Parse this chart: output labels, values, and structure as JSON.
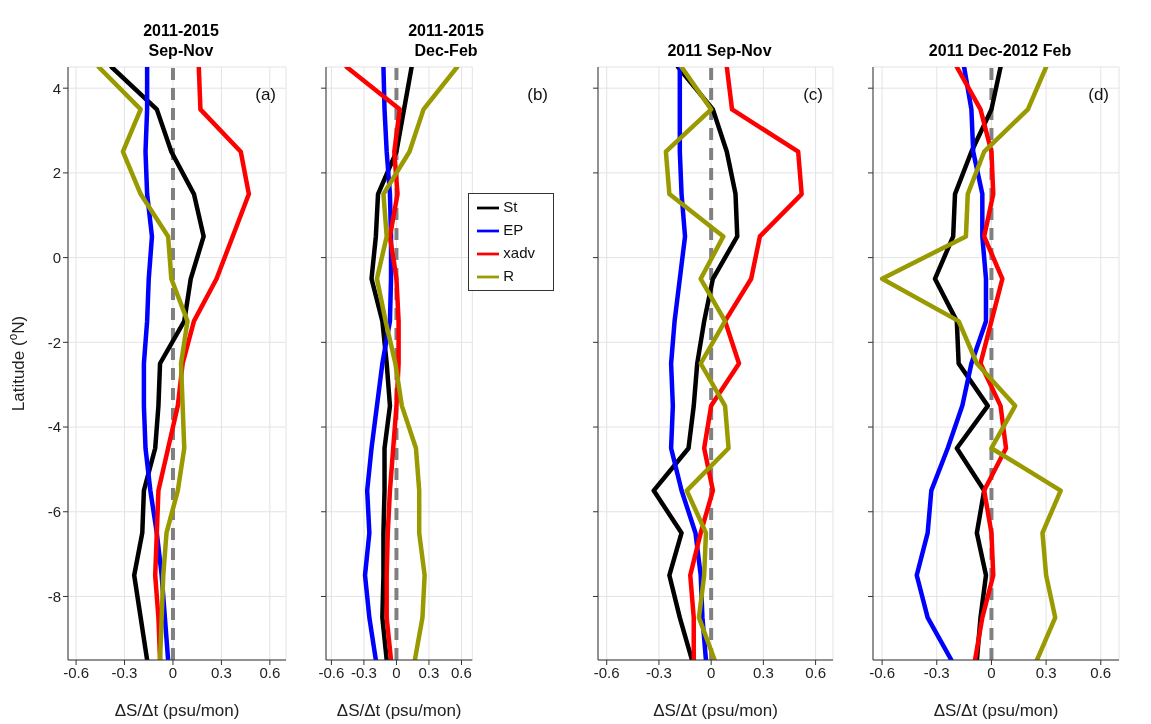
{
  "chart_data": [
    {
      "type": "line",
      "title": "2011-2015\nSep-Nov",
      "xlabel": "ΔS/Δt (psu/mon)",
      "ylabel": "Latitude ($^{o}$N)",
      "annotations": [
        "(a)"
      ],
      "xlim": [
        -0.65,
        0.7
      ],
      "xticks": [
        -0.6,
        -0.3,
        0,
        0.3,
        0.6
      ],
      "ylim": [
        -9.5,
        4.5
      ],
      "yticks": [
        -8,
        -6,
        -4,
        -2,
        0,
        2,
        4
      ],
      "grid": true,
      "legend": false,
      "marker": "none",
      "line_style": "solid",
      "ref_lines": [
        {
          "axis": "x",
          "value": 0,
          "color": "#808080",
          "line_style": "dashed"
        }
      ],
      "series": [
        {
          "color": "#000000",
          "x": [
            -0.38,
            -0.1,
            -0.01,
            0.13,
            0.19,
            0.11,
            0.07,
            -0.08,
            -0.09,
            -0.11,
            -0.18,
            -0.19,
            -0.24,
            -0.2,
            -0.16
          ],
          "values": [
            4.5,
            3.5,
            2.5,
            1.5,
            0.5,
            -0.5,
            -1.5,
            -2.5,
            -3.5,
            -4.5,
            -5.5,
            -6.5,
            -7.5,
            -8.5,
            -9.5
          ]
        },
        {
          "color": "#0000ff",
          "x": [
            -0.16,
            -0.16,
            -0.17,
            -0.16,
            -0.13,
            -0.15,
            -0.16,
            -0.18,
            -0.18,
            -0.17,
            -0.14,
            -0.1,
            -0.07,
            -0.05,
            -0.03
          ],
          "values": [
            4.5,
            3.5,
            2.5,
            1.5,
            0.5,
            -0.5,
            -1.5,
            -2.5,
            -3.5,
            -4.5,
            -5.5,
            -6.5,
            -7.5,
            -8.5,
            -9.5
          ]
        },
        {
          "color": "#ff0000",
          "x": [
            0.16,
            0.17,
            0.42,
            0.47,
            0.37,
            0.27,
            0.13,
            0.06,
            0.03,
            -0.03,
            -0.09,
            -0.1,
            -0.11,
            -0.09,
            -0.08
          ],
          "values": [
            4.5,
            3.5,
            2.5,
            1.5,
            0.5,
            -0.5,
            -1.5,
            -2.5,
            -3.5,
            -4.5,
            -5.5,
            -6.5,
            -7.5,
            -8.5,
            -9.5
          ]
        },
        {
          "color": "#999900",
          "x": [
            -0.46,
            -0.2,
            -0.31,
            -0.2,
            -0.03,
            -0.01,
            0.09,
            0.05,
            0.06,
            0.07,
            0.03,
            -0.04,
            -0.06,
            -0.07,
            -0.08
          ],
          "values": [
            4.5,
            3.5,
            2.5,
            1.5,
            0.5,
            -0.5,
            -1.5,
            -2.5,
            -3.5,
            -4.5,
            -5.5,
            -6.5,
            -7.5,
            -8.5,
            -9.5
          ]
        }
      ]
    },
    {
      "type": "line",
      "title": "2011-2015\nDec-Feb",
      "xlabel": "ΔS/Δt (psu/mon)",
      "annotations": [
        "(b)"
      ],
      "xlim": [
        -0.65,
        0.7
      ],
      "xticks": [
        -0.6,
        -0.3,
        0,
        0.3,
        0.6
      ],
      "ylim": [
        -9.5,
        4.5
      ],
      "yticks": [
        -8,
        -6,
        -4,
        -2,
        0,
        2,
        4
      ],
      "tick_labels": "x",
      "grid": true,
      "legend": "top right",
      "marker": "none",
      "line_style": "solid",
      "ref_lines": [
        {
          "axis": "x",
          "value": 0,
          "color": "#808080",
          "line_style": "dashed"
        }
      ],
      "series": [
        {
          "name": "St",
          "color": "#000000",
          "x": [
            0.14,
            0.07,
            0,
            -0.17,
            -0.19,
            -0.23,
            -0.13,
            -0.09,
            -0.06,
            -0.11,
            -0.11,
            -0.12,
            -0.12,
            -0.13,
            -0.09
          ],
          "values": [
            4.5,
            3.5,
            2.5,
            1.5,
            0.5,
            -0.5,
            -1.5,
            -2.5,
            -3.5,
            -4.5,
            -5.5,
            -6.5,
            -7.5,
            -8.5,
            -9.5
          ]
        },
        {
          "name": "EP",
          "color": "#0000ff",
          "x": [
            -0.12,
            -0.11,
            -0.09,
            -0.06,
            -0.05,
            -0.05,
            -0.06,
            -0.13,
            -0.18,
            -0.23,
            -0.27,
            -0.25,
            -0.29,
            -0.25,
            -0.19
          ],
          "values": [
            4.5,
            3.5,
            2.5,
            1.5,
            0.5,
            -0.5,
            -1.5,
            -2.5,
            -3.5,
            -4.5,
            -5.5,
            -6.5,
            -7.5,
            -8.5,
            -9.5
          ]
        },
        {
          "name": "xadv",
          "color": "#ff0000",
          "x": [
            -0.46,
            0.03,
            -0.02,
            0.01,
            -0.06,
            0,
            0.02,
            0.02,
            0,
            -0.03,
            -0.06,
            -0.08,
            -0.09,
            -0.09,
            -0.05
          ],
          "values": [
            4.5,
            3.5,
            2.5,
            1.5,
            0.5,
            -0.5,
            -1.5,
            -2.5,
            -3.5,
            -4.5,
            -5.5,
            -6.5,
            -7.5,
            -8.5,
            -9.5
          ]
        },
        {
          "name": "R",
          "color": "#999900",
          "x": [
            0.56,
            0.25,
            0.12,
            -0.12,
            -0.09,
            -0.18,
            -0.1,
            -0.01,
            0.05,
            0.18,
            0.21,
            0.21,
            0.26,
            0.24,
            0.17
          ],
          "values": [
            4.5,
            3.5,
            2.5,
            1.5,
            0.5,
            -0.5,
            -1.5,
            -2.5,
            -3.5,
            -4.5,
            -5.5,
            -6.5,
            -7.5,
            -8.5,
            -9.5
          ]
        }
      ]
    },
    {
      "type": "line",
      "title": "2011 Sep-Nov",
      "xlabel": "ΔS/Δt (psu/mon)",
      "annotations": [
        "(c)"
      ],
      "xlim": [
        -0.65,
        0.7
      ],
      "xticks": [
        -0.6,
        -0.3,
        0,
        0.3,
        0.6
      ],
      "ylim": [
        -9.5,
        4.5
      ],
      "yticks": [
        -8,
        -6,
        -4,
        -2,
        0,
        2,
        4
      ],
      "tick_labels": "x",
      "grid": true,
      "legend": false,
      "marker": "none",
      "line_style": "solid",
      "ref_lines": [
        {
          "axis": "x",
          "value": 0,
          "color": "#808080",
          "line_style": "dashed"
        }
      ],
      "series": [
        {
          "color": "#000000",
          "x": [
            -0.19,
            0.01,
            0.09,
            0.14,
            0.15,
            0.01,
            -0.04,
            -0.08,
            -0.1,
            -0.13,
            -0.33,
            -0.17,
            -0.24,
            -0.18,
            -0.11
          ],
          "values": [
            4.5,
            3.5,
            2.5,
            1.5,
            0.5,
            -0.5,
            -1.5,
            -2.5,
            -3.5,
            -4.5,
            -5.5,
            -6.5,
            -7.5,
            -8.5,
            -9.5
          ]
        },
        {
          "color": "#0000ff",
          "x": [
            -0.18,
            -0.18,
            -0.18,
            -0.17,
            -0.15,
            -0.18,
            -0.21,
            -0.23,
            -0.22,
            -0.23,
            -0.17,
            -0.09,
            -0.06,
            -0.05,
            -0.03
          ],
          "values": [
            4.5,
            3.5,
            2.5,
            1.5,
            0.5,
            -0.5,
            -1.5,
            -2.5,
            -3.5,
            -4.5,
            -5.5,
            -6.5,
            -7.5,
            -8.5,
            -9.5
          ]
        },
        {
          "color": "#ff0000",
          "x": [
            0.09,
            0.12,
            0.5,
            0.52,
            0.28,
            0.23,
            0.08,
            0.16,
            0,
            -0.04,
            0.01,
            -0.06,
            -0.12,
            -0.1,
            -0.1
          ],
          "values": [
            4.5,
            3.5,
            2.5,
            1.5,
            0.5,
            -0.5,
            -1.5,
            -2.5,
            -3.5,
            -4.5,
            -5.5,
            -6.5,
            -7.5,
            -8.5,
            -9.5
          ]
        },
        {
          "color": "#999900",
          "x": [
            -0.17,
            0,
            -0.26,
            -0.24,
            0.07,
            -0.06,
            0.08,
            -0.06,
            0.08,
            0.1,
            -0.14,
            -0.03,
            -0.04,
            -0.07,
            0.02
          ],
          "values": [
            4.5,
            3.5,
            2.5,
            1.5,
            0.5,
            -0.5,
            -1.5,
            -2.5,
            -3.5,
            -4.5,
            -5.5,
            -6.5,
            -7.5,
            -8.5,
            -9.5
          ]
        }
      ]
    },
    {
      "type": "line",
      "title": "2011 Dec-2012 Feb",
      "xlabel": "ΔS/Δt (psu/mon)",
      "annotations": [
        "(d)"
      ],
      "xlim": [
        -0.65,
        0.7
      ],
      "xticks": [
        -0.6,
        -0.3,
        0,
        0.3,
        0.6
      ],
      "ylim": [
        -9.5,
        4.5
      ],
      "yticks": [
        -8,
        -6,
        -4,
        -2,
        0,
        2,
        4
      ],
      "tick_labels": "x",
      "grid": true,
      "legend": false,
      "marker": "none",
      "line_style": "solid",
      "ref_lines": [
        {
          "axis": "x",
          "value": 0,
          "color": "#808080",
          "line_style": "dashed"
        }
      ],
      "series": [
        {
          "color": "#000000",
          "x": [
            0.05,
            0,
            -0.11,
            -0.2,
            -0.21,
            -0.31,
            -0.19,
            -0.18,
            -0.02,
            -0.19,
            -0.04,
            -0.08,
            -0.03,
            -0.06,
            -0.08
          ],
          "values": [
            4.5,
            3.5,
            2.5,
            1.5,
            0.5,
            -0.5,
            -1.5,
            -2.5,
            -3.5,
            -4.5,
            -5.5,
            -6.5,
            -7.5,
            -8.5,
            -9.5
          ]
        },
        {
          "color": "#0000ff",
          "x": [
            -0.15,
            -0.11,
            -0.1,
            -0.05,
            -0.05,
            -0.03,
            -0.03,
            -0.11,
            -0.16,
            -0.24,
            -0.33,
            -0.35,
            -0.41,
            -0.35,
            -0.22
          ],
          "values": [
            4.5,
            3.5,
            2.5,
            1.5,
            0.5,
            -0.5,
            -1.5,
            -2.5,
            -3.5,
            -4.5,
            -5.5,
            -6.5,
            -7.5,
            -8.5,
            -9.5
          ]
        },
        {
          "color": "#ff0000",
          "x": [
            -0.19,
            -0.06,
            0,
            0.01,
            -0.04,
            0.06,
            0,
            -0.06,
            0.05,
            0.08,
            -0.04,
            0,
            0.01,
            -0.05,
            -0.09
          ],
          "values": [
            4.5,
            3.5,
            2.5,
            1.5,
            0.5,
            -0.5,
            -1.5,
            -2.5,
            -3.5,
            -4.5,
            -5.5,
            -6.5,
            -7.5,
            -8.5,
            -9.5
          ]
        },
        {
          "color": "#999900",
          "x": [
            0.3,
            0.2,
            -0.04,
            -0.13,
            -0.14,
            -0.6,
            -0.18,
            -0.08,
            0.13,
            0,
            0.38,
            0.28,
            0.3,
            0.35,
            0.25
          ],
          "values": [
            4.5,
            3.5,
            2.5,
            1.5,
            0.5,
            -0.5,
            -1.5,
            -2.5,
            -3.5,
            -4.5,
            -5.5,
            -6.5,
            -7.5,
            -8.5,
            -9.5
          ]
        }
      ]
    }
  ]
}
